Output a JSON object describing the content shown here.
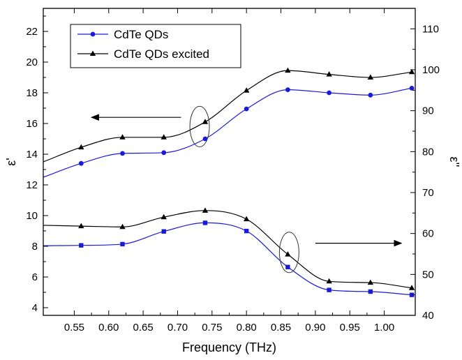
{
  "chart_data": {
    "type": "line",
    "xlabel": "Frequency (THz)",
    "ylabel_left": "ε'",
    "ylabel_right": "ε''",
    "xlim": [
      0.505,
      1.045
    ],
    "ylim_left": [
      3.5,
      23.5
    ],
    "ylim_right": [
      40,
      115
    ],
    "xticks": [
      0.55,
      0.6,
      0.65,
      0.7,
      0.75,
      0.8,
      0.85,
      0.9,
      0.95,
      1.0
    ],
    "xtick_labels": [
      "0.55",
      "0.60",
      "0.65",
      "0.70",
      "0.75",
      "0.80",
      "0.85",
      "0.90",
      "0.95",
      "1.00"
    ],
    "yticks_left": [
      4,
      6,
      8,
      10,
      12,
      14,
      16,
      18,
      20,
      22
    ],
    "yticks_right": [
      40,
      50,
      60,
      70,
      80,
      90,
      100,
      110
    ],
    "legend": {
      "placement": "top-left",
      "entries": [
        "CdTe QDs",
        "CdTe QDs excited"
      ]
    },
    "colors": {
      "cdte": "#1a1adb",
      "excited": "#000000"
    },
    "series": [
      {
        "name": "CdTe QDs",
        "group": "epsilon_prime",
        "marker": "circle",
        "color": "#1a1adb",
        "x": [
          0.505,
          0.56,
          0.62,
          0.68,
          0.74,
          0.8,
          0.86,
          0.92,
          0.98,
          1.04
        ],
        "y": [
          12.5,
          13.4,
          14.05,
          14.1,
          15.0,
          16.95,
          18.2,
          18.0,
          17.85,
          18.3
        ],
        "marker_x": [
          0.56,
          0.62,
          0.68,
          0.74,
          0.8,
          0.86,
          0.92,
          0.98,
          1.04
        ]
      },
      {
        "name": "CdTe QDs excited",
        "group": "epsilon_prime",
        "marker": "triangle",
        "color": "#000000",
        "x": [
          0.505,
          0.56,
          0.62,
          0.68,
          0.74,
          0.8,
          0.86,
          0.92,
          0.98,
          1.04
        ],
        "y": [
          13.5,
          14.45,
          15.1,
          15.1,
          16.1,
          18.15,
          19.45,
          19.2,
          19.0,
          19.35
        ],
        "marker_x": [
          0.56,
          0.62,
          0.68,
          0.74,
          0.8,
          0.86,
          0.92,
          0.98,
          1.04
        ]
      },
      {
        "name": "CdTe QDs",
        "group": "epsilon_double_prime",
        "marker": "square",
        "color": "#1a1adb",
        "x": [
          0.505,
          0.56,
          0.62,
          0.68,
          0.74,
          0.8,
          0.86,
          0.92,
          0.98,
          1.04
        ],
        "y": [
          57.0,
          57.1,
          57.4,
          60.5,
          62.6,
          60.6,
          51.8,
          46.2,
          45.8,
          45.0
        ],
        "marker_x": [
          0.56,
          0.62,
          0.68,
          0.74,
          0.8,
          0.86,
          0.92,
          0.98,
          1.04
        ]
      },
      {
        "name": "CdTe QDs excited",
        "group": "epsilon_double_prime",
        "marker": "triangle",
        "color": "#000000",
        "x": [
          0.505,
          0.56,
          0.62,
          0.68,
          0.74,
          0.8,
          0.86,
          0.92,
          0.98,
          1.04
        ],
        "y": [
          62.0,
          61.8,
          61.6,
          64.0,
          65.6,
          63.5,
          54.9,
          48.3,
          48.0,
          46.7
        ],
        "marker_x": [
          0.56,
          0.62,
          0.68,
          0.74,
          0.8,
          0.86,
          0.92,
          0.98,
          1.04
        ]
      }
    ],
    "annotations": [
      {
        "kind": "ellipse",
        "center": [
          0.732,
          15.8
        ],
        "axis": "left"
      },
      {
        "kind": "arrow",
        "from": [
          0.705,
          16.4
        ],
        "to": [
          0.575,
          16.4
        ],
        "axis": "left",
        "direction": "left"
      },
      {
        "kind": "ellipse",
        "center": [
          0.862,
          7.6
        ],
        "axis": "left"
      },
      {
        "kind": "arrow",
        "from": [
          0.9,
          8.2
        ],
        "to": [
          1.025,
          8.2
        ],
        "axis": "left",
        "direction": "right"
      }
    ]
  }
}
